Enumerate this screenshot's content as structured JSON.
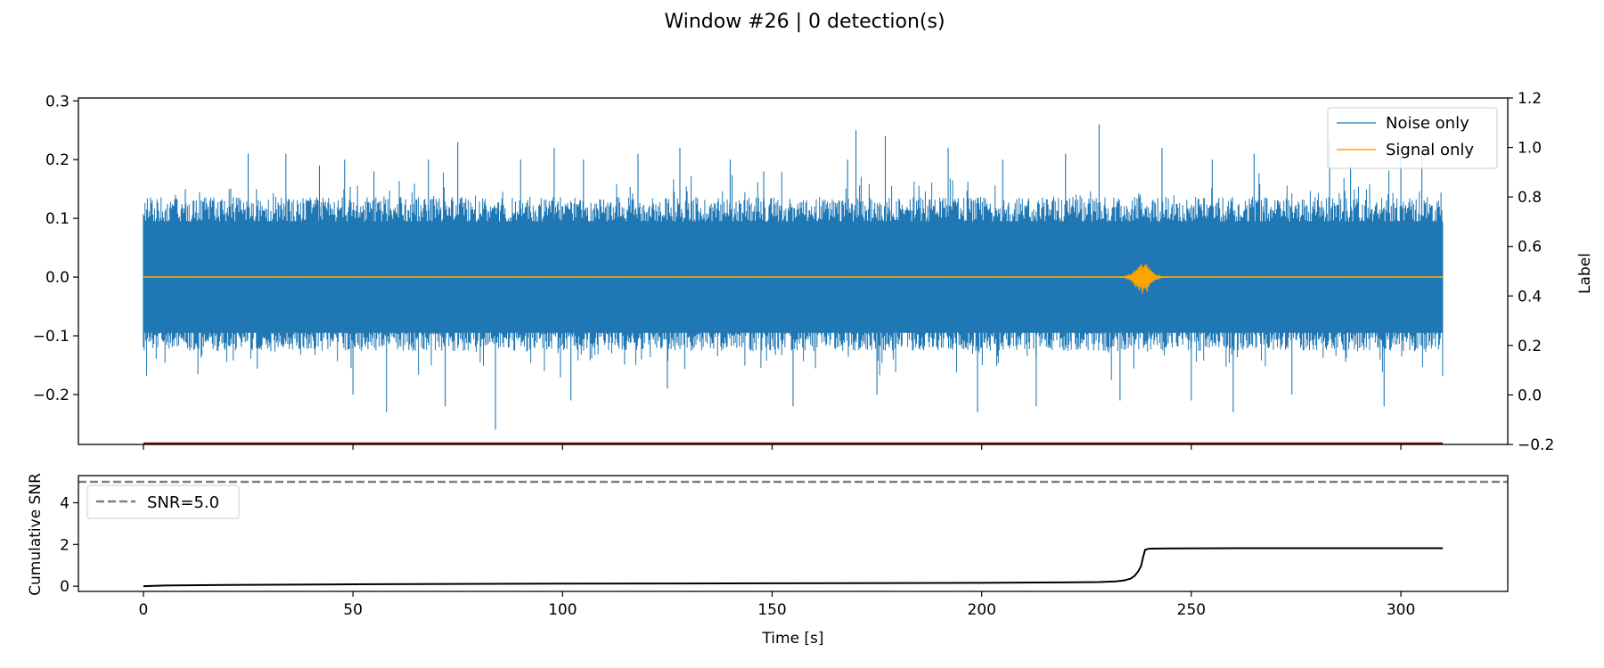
{
  "title": "Window #26 | 0 detection(s)",
  "chart_data": [
    {
      "type": "line",
      "panel": "top",
      "xlim": [
        -15.5,
        325.5
      ],
      "ylim": [
        -0.285,
        0.305
      ],
      "y2lim": [
        -0.2,
        1.2
      ],
      "y2label": "Label",
      "xticks": [
        0,
        50,
        100,
        150,
        200,
        250,
        300
      ],
      "xticklabels": [
        "",
        "",
        "",
        "",
        "",
        "",
        ""
      ],
      "yticks": [
        -0.2,
        -0.1,
        0.0,
        0.1,
        0.2,
        0.3
      ],
      "yticklabels": [
        "−0.2",
        "−0.1",
        "0.0",
        "0.1",
        "0.2",
        "0.3"
      ],
      "y2ticks": [
        -0.2,
        0.0,
        0.2,
        0.4,
        0.6,
        0.8,
        1.0,
        1.2
      ],
      "y2ticklabels": [
        "−0.2",
        "0.0",
        "0.2",
        "0.4",
        "0.6",
        "0.8",
        "1.0",
        "1.2"
      ],
      "legend_position": "top-right",
      "series": [
        {
          "name": "Noise only",
          "color": "#1f77b4",
          "x_range": [
            0,
            310
          ],
          "typical_envelope": [
            -0.12,
            0.13
          ],
          "spikes": [
            [
              10,
              0.15
            ],
            [
              25,
              0.21
            ],
            [
              34,
              0.21
            ],
            [
              42,
              0.19
            ],
            [
              48,
              0.2
            ],
            [
              50,
              -0.2
            ],
            [
              55,
              0.18
            ],
            [
              58,
              -0.23
            ],
            [
              68,
              0.2
            ],
            [
              72,
              -0.22
            ],
            [
              75,
              0.23
            ],
            [
              84,
              -0.26
            ],
            [
              90,
              0.2
            ],
            [
              98,
              0.22
            ],
            [
              102,
              -0.21
            ],
            [
              105,
              0.2
            ],
            [
              118,
              0.21
            ],
            [
              125,
              -0.19
            ],
            [
              128,
              0.22
            ],
            [
              140,
              0.2
            ],
            [
              148,
              0.18
            ],
            [
              155,
              -0.22
            ],
            [
              168,
              0.2
            ],
            [
              170,
              0.25
            ],
            [
              175,
              -0.2
            ],
            [
              177,
              0.24
            ],
            [
              192,
              0.22
            ],
            [
              199,
              -0.23
            ],
            [
              205,
              0.2
            ],
            [
              213,
              -0.22
            ],
            [
              220,
              0.21
            ],
            [
              228,
              0.26
            ],
            [
              233,
              -0.21
            ],
            [
              243,
              0.22
            ],
            [
              250,
              -0.21
            ],
            [
              255,
              0.2
            ],
            [
              260,
              -0.23
            ],
            [
              265,
              0.21
            ],
            [
              274,
              -0.2
            ],
            [
              283,
              0.23
            ],
            [
              288,
              0.19
            ],
            [
              296,
              -0.22
            ],
            [
              300,
              0.22
            ],
            [
              305,
              0.22
            ]
          ]
        },
        {
          "name": "Signal only",
          "color": "#ffa500",
          "x_range": [
            0,
            310
          ],
          "value": 0.0,
          "burst": {
            "center": 238.5,
            "peak": 0.025,
            "trough": -0.03
          }
        },
        {
          "color": "#8b0000",
          "axis": "right",
          "x": [
            0,
            310
          ],
          "y": [
            -0.2,
            -0.2
          ]
        }
      ]
    },
    {
      "type": "line",
      "panel": "bottom",
      "xlabel": "Time [s]",
      "ylabel": "Cumulative SNR",
      "xlim": [
        -15.5,
        325.5
      ],
      "ylim": [
        -0.25,
        5.3
      ],
      "xticks": [
        0,
        50,
        100,
        150,
        200,
        250,
        300
      ],
      "xticklabels": [
        "0",
        "50",
        "100",
        "150",
        "200",
        "250",
        "300"
      ],
      "yticks": [
        0,
        2,
        4
      ],
      "yticklabels": [
        "0",
        "2",
        "4"
      ],
      "legend_position": "top-left",
      "series": [
        {
          "name": "SNR=5.0",
          "color": "#808080",
          "style": "dashed",
          "type": "hline",
          "y": 5.0
        },
        {
          "color": "#000000",
          "x": [
            0,
            5,
            20,
            50,
            100,
            150,
            200,
            220,
            228,
            232,
            234,
            235.5,
            236.5,
            237.3,
            238,
            238.5,
            239,
            240,
            245,
            260,
            290,
            310
          ],
          "y": [
            0.0,
            0.03,
            0.06,
            0.09,
            0.12,
            0.14,
            0.16,
            0.18,
            0.2,
            0.23,
            0.28,
            0.36,
            0.5,
            0.7,
            0.95,
            1.4,
            1.75,
            1.8,
            1.81,
            1.82,
            1.82,
            1.82
          ]
        }
      ]
    }
  ]
}
